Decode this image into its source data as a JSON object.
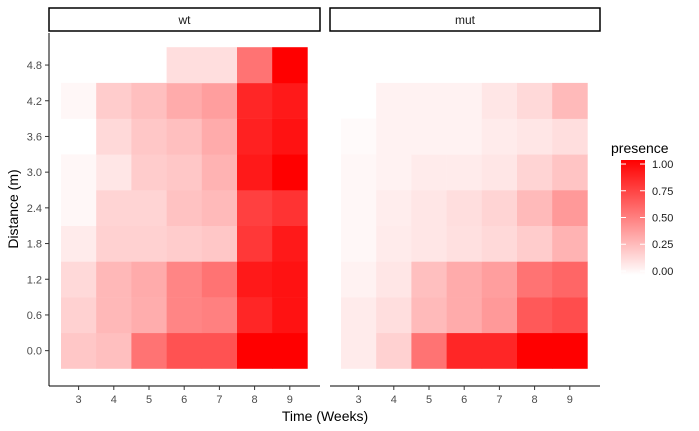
{
  "chart_data": {
    "type": "heatmap",
    "xlabel": "Time (Weeks)",
    "ylabel": "Distance (m)",
    "x": [
      3,
      4,
      5,
      6,
      7,
      8,
      9
    ],
    "y": [
      0.0,
      0.6,
      1.2,
      1.8,
      2.4,
      3.0,
      3.6,
      4.2,
      4.8
    ],
    "x_tick_labels": [
      "3",
      "4",
      "5",
      "6",
      "7",
      "8",
      "9"
    ],
    "y_tick_labels": [
      "0.0",
      "0.6",
      "1.2",
      "1.8",
      "2.4",
      "3.0",
      "3.6",
      "4.2",
      "4.8"
    ],
    "legend": {
      "title": "presence",
      "placement": "right",
      "range": [
        0,
        1
      ],
      "ticks": [
        1.0,
        0.75,
        0.5,
        0.25,
        0.0
      ],
      "tick_labels": [
        "1.00",
        "0.75",
        "0.50",
        "0.25",
        "0.00"
      ],
      "color_low": "#ffffff",
      "color_high": "#ff0000"
    },
    "panels": [
      {
        "label": "wt",
        "values": [
          [
            0.22,
            0.25,
            0.55,
            0.68,
            0.68,
            1.0,
            1.0
          ],
          [
            0.18,
            0.28,
            0.32,
            0.48,
            0.5,
            0.85,
            0.93
          ],
          [
            0.15,
            0.28,
            0.33,
            0.48,
            0.55,
            0.9,
            0.93
          ],
          [
            0.08,
            0.18,
            0.18,
            0.2,
            0.22,
            0.78,
            0.9
          ],
          [
            0.03,
            0.17,
            0.17,
            0.24,
            0.27,
            0.75,
            0.8
          ],
          [
            0.03,
            0.1,
            0.2,
            0.22,
            0.3,
            0.9,
            1.0
          ],
          [
            null,
            0.15,
            0.22,
            0.25,
            0.33,
            0.87,
            0.93
          ],
          [
            0.03,
            0.2,
            0.25,
            0.33,
            0.38,
            0.85,
            0.9
          ],
          [
            null,
            null,
            null,
            0.13,
            0.13,
            0.55,
            1.0
          ]
        ]
      },
      {
        "label": "mut",
        "values": [
          [
            0.08,
            0.18,
            0.55,
            0.85,
            0.85,
            1.0,
            1.0
          ],
          [
            0.08,
            0.13,
            0.27,
            0.33,
            0.4,
            0.65,
            0.7
          ],
          [
            0.05,
            0.1,
            0.25,
            0.33,
            0.38,
            0.55,
            0.6
          ],
          [
            0.03,
            0.08,
            0.1,
            0.12,
            0.15,
            0.2,
            0.3
          ],
          [
            0.03,
            0.07,
            0.1,
            0.13,
            0.17,
            0.27,
            0.4
          ],
          [
            0.03,
            0.05,
            0.08,
            0.08,
            0.1,
            0.17,
            0.23
          ],
          [
            0.02,
            0.05,
            0.05,
            0.05,
            0.08,
            0.1,
            0.13
          ],
          [
            null,
            0.05,
            0.05,
            0.05,
            0.1,
            0.15,
            0.27
          ],
          [
            null,
            null,
            null,
            null,
            null,
            null,
            null
          ]
        ]
      }
    ]
  }
}
